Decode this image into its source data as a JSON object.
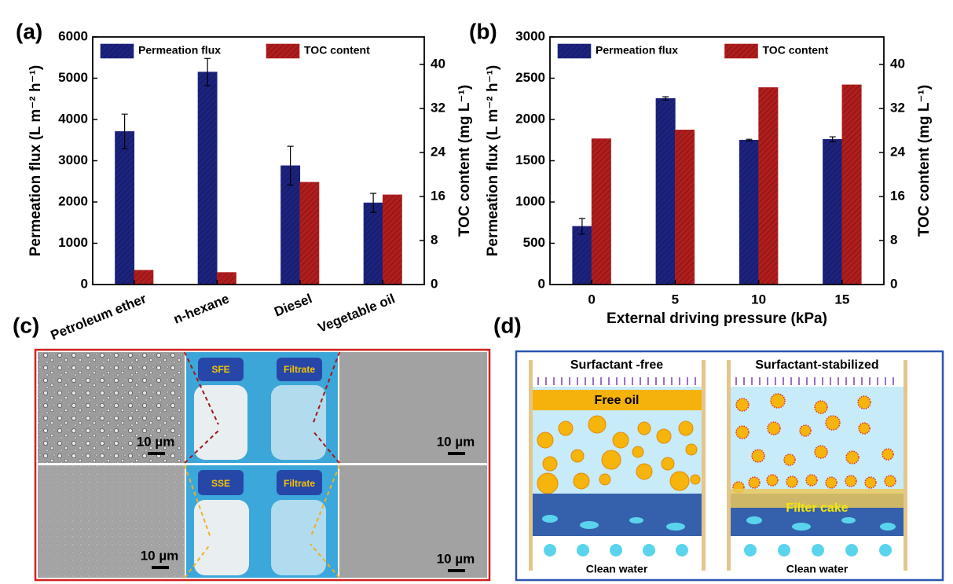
{
  "chart_data": [
    {
      "type": "bar",
      "panel": "(a)",
      "categories": [
        "Petroleum ether",
        "n-hexane",
        "Diesel",
        "Vegetable oil"
      ],
      "ylabel": "Permeation flux (L m⁻² h⁻¹)",
      "y2label": "TOC content (mg L⁻¹)",
      "ylim": [
        0,
        6000
      ],
      "yticks": [
        0,
        1000,
        2000,
        3000,
        4000,
        5000,
        6000
      ],
      "y2lim": [
        0,
        45
      ],
      "y2ticks": [
        0,
        8,
        16,
        24,
        32,
        40
      ],
      "series": [
        {
          "name": "Permeation flux",
          "color": "#1c237f",
          "values": [
            3710,
            5150,
            2880,
            1980
          ],
          "errors": [
            420,
            330,
            470,
            230
          ]
        },
        {
          "name": "TOC content",
          "color": "#b11d1d",
          "axis": "y2",
          "values": [
            2.6,
            2.2,
            18.6,
            16.3
          ]
        }
      ]
    },
    {
      "type": "bar",
      "panel": "(b)",
      "categories": [
        "0",
        "5",
        "10",
        "15"
      ],
      "xlabel": "External driving pressure (kPa)",
      "ylabel": "Permeation flux (L m⁻² h⁻¹)",
      "y2label": "TOC content (mg L⁻¹)",
      "ylim": [
        0,
        3000
      ],
      "yticks": [
        0,
        500,
        1000,
        1500,
        2000,
        2500,
        3000
      ],
      "y2lim": [
        0,
        45
      ],
      "y2ticks": [
        0,
        8,
        16,
        24,
        32,
        40
      ],
      "series": [
        {
          "name": "Permeation flux",
          "color": "#1c237f",
          "values": [
            705,
            2255,
            1750,
            1760
          ],
          "errors": [
            95,
            20,
            10,
            30
          ]
        },
        {
          "name": "TOC content",
          "color": "#b11d1d",
          "axis": "y2",
          "values": [
            26.5,
            28.1,
            35.8,
            36.3
          ]
        }
      ]
    }
  ],
  "panels": {
    "c": {
      "label": "(c)",
      "scale_bars": [
        "10 µm",
        "10 µm",
        "10 µm",
        "10 µm"
      ],
      "jars": [
        "SFE",
        "Filtrate",
        "SSE",
        "Filtrate"
      ]
    },
    "d": {
      "label": "(d)",
      "left_title": "Surfactant -free",
      "right_title": "Surfactant-stabilized",
      "free_oil": "Free oil",
      "filter_cake": "Filter cake",
      "bottom": [
        "Clean water",
        "Clean water"
      ]
    }
  }
}
